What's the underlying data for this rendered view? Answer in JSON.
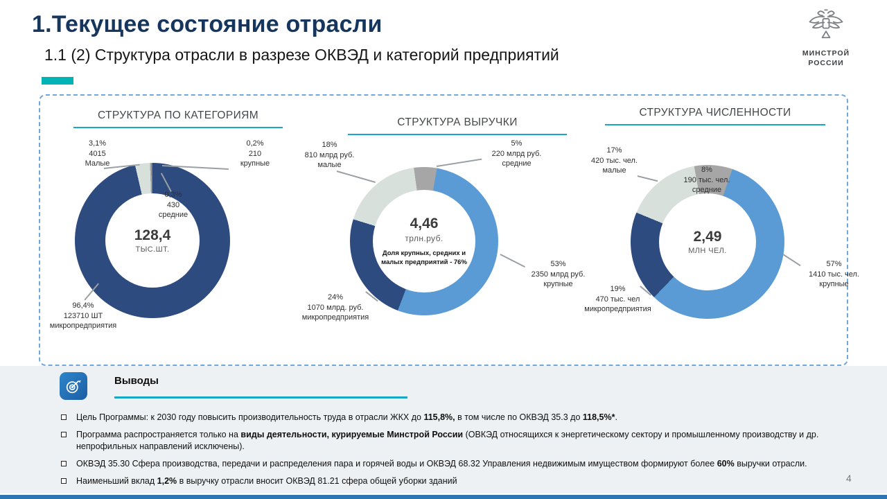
{
  "slide": {
    "title": "1.Текущее состояние отрасли",
    "subtitle": "1.1 (2) Структура отрасли в разрезе ОКВЭД и категорий предприятий",
    "page_number": "4",
    "logo_line1": "МИНСТРОЙ",
    "logo_line2": "РОССИИ"
  },
  "colors": {
    "accent_teal": "#00b3b5",
    "underline_teal": "#18a7c4",
    "navy": "#17365d",
    "donut_navy": "#2e4b80",
    "donut_blue": "#5b9bd5",
    "donut_lightgray": "#d8e0dc",
    "donut_gray": "#a6a6a6",
    "donut_darkgray": "#7f7f7f",
    "bottom_bar": "#2e75b6"
  },
  "chart_data": [
    {
      "type": "pie",
      "title": "СТРУКТУРА ПО КАТЕГОРИЯМ",
      "center_value": "128,4",
      "center_unit": "ТЫС.ШТ.",
      "start_angle": 347,
      "legend_position": "callout-labels",
      "segments": [
        {
          "name": "Малые",
          "pct": 3.1,
          "pct_text": "3,1%",
          "value": "4015",
          "color": "#d8e0dc"
        },
        {
          "name": "средние",
          "pct": 0.3,
          "pct_text": "0,3%",
          "value": "430",
          "color": "#a6a6a6"
        },
        {
          "name": "крупные",
          "pct": 0.2,
          "pct_text": "0,2%",
          "value": "210",
          "color": "#7f7f7f"
        },
        {
          "name": "микропредприятия",
          "pct": 96.4,
          "pct_text": "96,4%",
          "value": "123710 ШТ",
          "color": "#2e4b80"
        }
      ]
    },
    {
      "type": "pie",
      "title": "СТРУКТУРА ВЫРУЧКИ",
      "center_value": "4,46",
      "center_unit": "трлн.руб.",
      "center_note": "Доля крупных, средних и малых предприятий - 76%",
      "start_angle": 352,
      "legend_position": "callout-labels",
      "segments": [
        {
          "name": "средние",
          "pct": 5,
          "pct_text": "5%",
          "value": "220 млрд руб.",
          "color": "#a6a6a6"
        },
        {
          "name": "крупные",
          "pct": 53,
          "pct_text": "53%",
          "value": "2350 млрд руб.",
          "color": "#5b9bd5"
        },
        {
          "name": "микропредприятия",
          "pct": 24,
          "pct_text": "24%",
          "value": "1070 млрд. руб.",
          "color": "#2e4b80"
        },
        {
          "name": "малые",
          "pct": 18,
          "pct_text": "18%",
          "value": "810 млрд руб.",
          "color": "#d8e0dc"
        }
      ]
    },
    {
      "type": "pie",
      "title": "СТРУКТУРА ЧИСЛЕННОСТИ",
      "center_value": "2,49",
      "center_unit": "МЛН ЧЕЛ.",
      "start_angle": 350,
      "legend_position": "callout-labels",
      "segments": [
        {
          "name": "средние",
          "pct": 8,
          "pct_text": "8%",
          "value": "190 тыс. чел.",
          "color": "#a6a6a6"
        },
        {
          "name": "крупные",
          "pct": 57,
          "pct_text": "57%",
          "value": "1410 тыс. чел.",
          "color": "#5b9bd5"
        },
        {
          "name": "микропредприятия",
          "pct": 19,
          "pct_text": "19%",
          "value": "470 тыс. чел",
          "color": "#2e4b80"
        },
        {
          "name": "малые",
          "pct": 17,
          "pct_text": "17%",
          "value": "420 тыс. чел.",
          "color": "#d8e0dc"
        }
      ]
    }
  ],
  "conclusions": {
    "heading": "Выводы",
    "bullets": [
      [
        {
          "t": "Цель Программы: к 2030 году повысить производительность труда в отрасли ЖКХ до "
        },
        {
          "t": "115,8%,",
          "b": true
        },
        {
          "t": " в том числе по ОКВЭД 35.3 до "
        },
        {
          "t": "118,5%*",
          "b": true
        },
        {
          "t": "."
        }
      ],
      [
        {
          "t": "Программа распространяется только на "
        },
        {
          "t": "виды деятельности, курируемые Минстрой России",
          "b": true
        },
        {
          "t": " (ОВКЭД относящихся к энергетическому сектору и промышленному производству и др. непрофильных направлений исключены)."
        }
      ],
      [
        {
          "t": "ОКВЭД 35.30 Сфера производства, передачи и распределения пара и горячей воды и ОКВЭД 68.32 Управления недвижимым имуществом формируют более "
        },
        {
          "t": "60%",
          "b": true
        },
        {
          "t": " выручки отрасли."
        }
      ],
      [
        {
          "t": "Наименьший вклад "
        },
        {
          "t": "1,2%",
          "b": true
        },
        {
          "t": " в выручку отрасли вносит ОКВЭД 81.21 сфера общей уборки зданий"
        }
      ]
    ]
  }
}
